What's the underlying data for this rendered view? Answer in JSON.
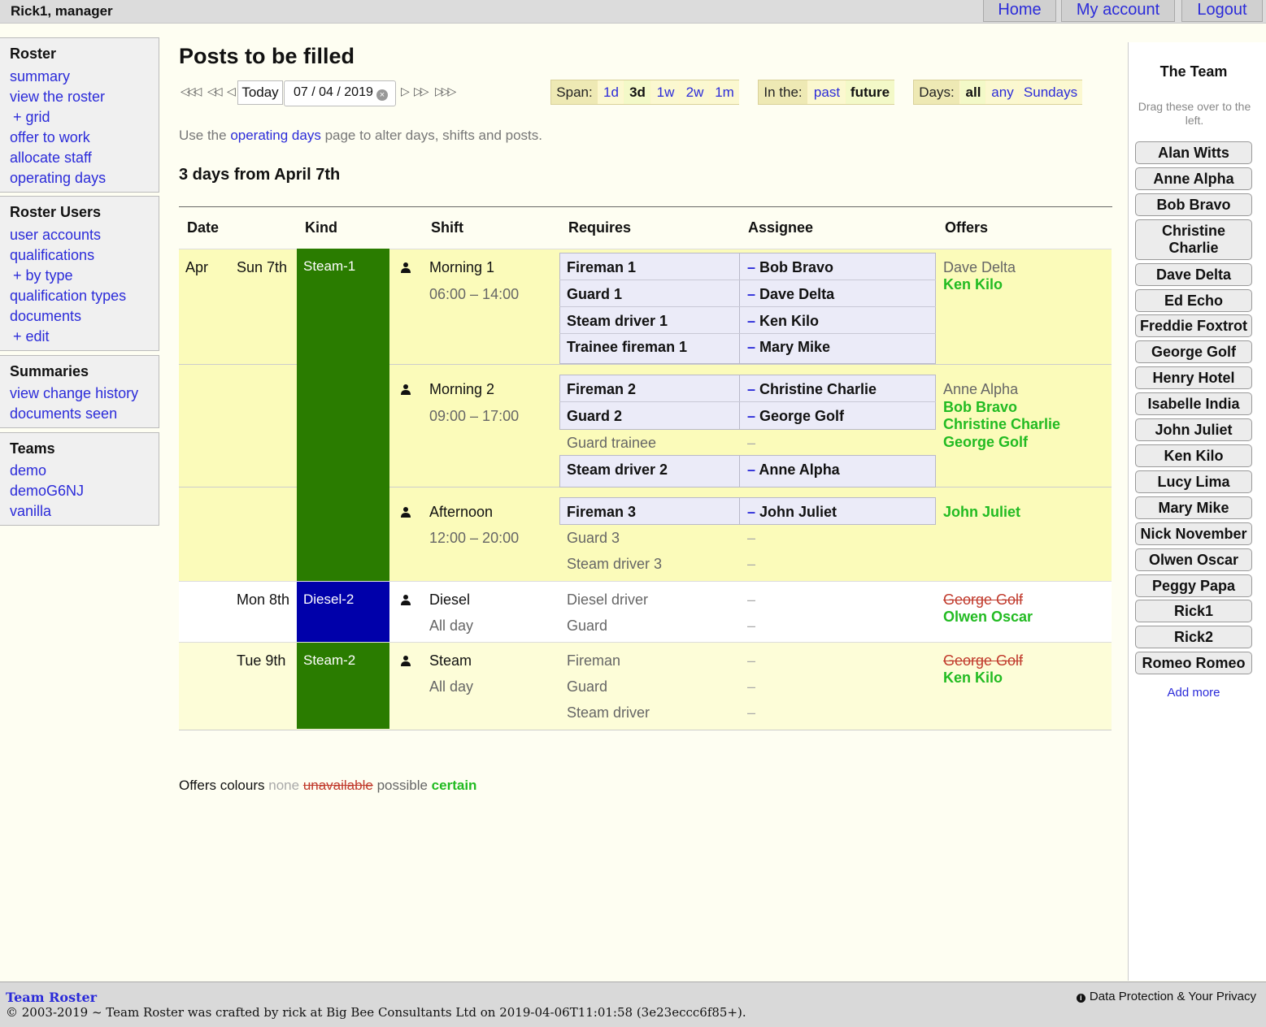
{
  "header": {
    "user": "Rick1, manager",
    "nav": {
      "home": "Home",
      "account": "My account",
      "logout": "Logout"
    }
  },
  "sidebar": {
    "roster": {
      "title": "Roster",
      "items": [
        "summary",
        "view the roster",
        "+ grid",
        "offer to work",
        "allocate staff",
        "operating days"
      ]
    },
    "users": {
      "title": "Roster Users",
      "items": [
        "user accounts",
        "qualifications",
        "+ by type",
        "qualification types",
        "documents",
        "+ edit"
      ]
    },
    "summaries": {
      "title": "Summaries",
      "items": [
        "view change history",
        "documents seen"
      ]
    },
    "teams": {
      "title": "Teams",
      "items": [
        "demo",
        "demoG6NJ",
        "vanilla"
      ]
    }
  },
  "main": {
    "title": "Posts to be filled",
    "today_label": "Today",
    "date_value": "07 / 04 / 2019",
    "span": {
      "label": "Span:",
      "options": [
        "1d",
        "3d",
        "1w",
        "2w",
        "1m"
      ],
      "selected": "3d"
    },
    "inthe": {
      "label": "In the:",
      "options": [
        "past",
        "future"
      ],
      "selected": "future"
    },
    "days": {
      "label": "Days:",
      "options": [
        "all",
        "any",
        "Sundays"
      ],
      "selected": "all"
    },
    "hint": {
      "pre": "Use the ",
      "link": "operating days",
      "post": " page to alter days, shifts and posts."
    },
    "subtitle": "3 days from April 7th",
    "columns": [
      "Date",
      "Kind",
      "Shift",
      "Requires",
      "Assignee",
      "Offers"
    ],
    "month": "Apr",
    "days_list": [
      {
        "day": "Sun 7th",
        "kind": "Steam-1",
        "kind_color": "#2a7c00",
        "shifts": [
          {
            "name": "Morning 1",
            "time": "06:00 – 14:00",
            "posts": [
              {
                "post": "Fireman 1",
                "assignee": "Bob Bravo"
              },
              {
                "post": "Guard 1",
                "assignee": "Dave Delta"
              },
              {
                "post": "Steam driver 1",
                "assignee": "Ken Kilo"
              },
              {
                "post": "Trainee fireman 1",
                "assignee": "Mary Mike"
              }
            ],
            "offers": [
              {
                "name": "Dave Delta",
                "status": "possible"
              },
              {
                "name": "Ken Kilo",
                "status": "certain"
              }
            ]
          },
          {
            "name": "Morning 2",
            "time": "09:00 – 17:00",
            "posts": [
              {
                "post": "Fireman 2",
                "assignee": "Christine Charlie"
              },
              {
                "post": "Guard 2",
                "assignee": "George Golf"
              },
              {
                "post": "Guard trainee",
                "assignee": ""
              },
              {
                "post": "Steam driver 2",
                "assignee": "Anne Alpha"
              }
            ],
            "offers": [
              {
                "name": "Anne Alpha",
                "status": "possible"
              },
              {
                "name": "Bob Bravo",
                "status": "certain"
              },
              {
                "name": "Christine Charlie",
                "status": "certain"
              },
              {
                "name": "George Golf",
                "status": "certain"
              }
            ]
          },
          {
            "name": "Afternoon",
            "time": "12:00 – 20:00",
            "posts": [
              {
                "post": "Fireman 3",
                "assignee": "John Juliet"
              },
              {
                "post": "Guard 3",
                "assignee": ""
              },
              {
                "post": "Steam driver 3",
                "assignee": ""
              }
            ],
            "offers": [
              {
                "name": "John Juliet",
                "status": "certain"
              }
            ]
          }
        ]
      },
      {
        "day": "Mon 8th",
        "kind": "Diesel-2",
        "kind_color": "#0000aa",
        "shifts": [
          {
            "name": "Diesel",
            "time": "All day",
            "posts": [
              {
                "post": "Diesel driver",
                "assignee": ""
              },
              {
                "post": "Guard",
                "assignee": ""
              }
            ],
            "offers": [
              {
                "name": "George Golf",
                "status": "unavailable"
              },
              {
                "name": "Olwen Oscar",
                "status": "certain"
              }
            ]
          }
        ]
      },
      {
        "day": "Tue 9th",
        "kind": "Steam-2",
        "kind_color": "#2a7c00",
        "shifts": [
          {
            "name": "Steam",
            "time": "All day",
            "posts": [
              {
                "post": "Fireman",
                "assignee": ""
              },
              {
                "post": "Guard",
                "assignee": ""
              },
              {
                "post": "Steam driver",
                "assignee": ""
              }
            ],
            "offers": [
              {
                "name": "George Golf",
                "status": "unavailable"
              },
              {
                "name": "Ken Kilo",
                "status": "certain"
              }
            ]
          }
        ]
      }
    ],
    "dash": "–",
    "legend": {
      "label": "Offers colours",
      "none": "none",
      "unavailable": "unavailable",
      "possible": "possible",
      "certain": "certain"
    }
  },
  "team": {
    "title": "The Team",
    "hint": "Drag these over to the left.",
    "members": [
      "Alan Witts",
      "Anne Alpha",
      "Bob Bravo",
      "Christine Charlie",
      "Dave Delta",
      "Ed Echo",
      "Freddie Foxtrot",
      "George Golf",
      "Henry Hotel",
      "Isabelle India",
      "John Juliet",
      "Ken Kilo",
      "Lucy Lima",
      "Mary Mike",
      "Nick November",
      "Olwen Oscar",
      "Peggy Papa",
      "Rick1",
      "Rick2",
      "Romeo Romeo"
    ],
    "add_more": "Add more"
  },
  "footer": {
    "brand": "Team Roster",
    "copyright": "© 2003-2019 ~ Team Roster was crafted by rick at Big Bee Consultants Ltd on 2019-04-06T11:01:58 (3e23eccc6f85+).",
    "privacy": "Data Protection & Your Privacy"
  },
  "colors": {
    "certain": "#22bb22",
    "unavailable": "#c0392b",
    "link": "#2b2bd9",
    "steam": "#2a7c00",
    "diesel": "#0000aa"
  }
}
